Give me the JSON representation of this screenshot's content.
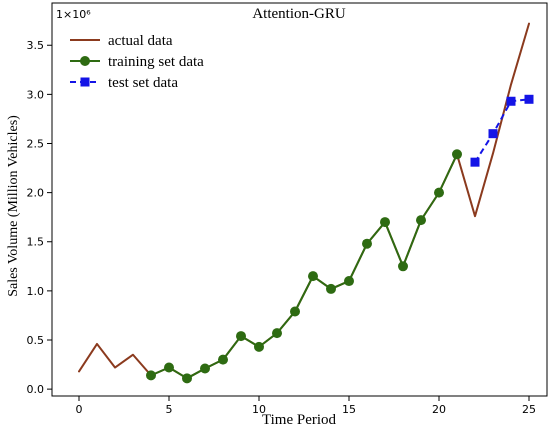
{
  "chart_data": {
    "type": "line",
    "title": "Attention-GRU",
    "xlabel": "Time Period",
    "ylabel": "Sales Volume (Million Vehicles)",
    "y_multiplier_label": "1×10⁶",
    "xlim": [
      -1.5,
      26.0
    ],
    "ylim": [
      -0.07,
      3.93
    ],
    "x_ticks": [
      0,
      5,
      10,
      15,
      20,
      25
    ],
    "y_ticks": [
      0.0,
      0.5,
      1.0,
      1.5,
      2.0,
      2.5,
      3.0,
      3.5
    ],
    "x_tick_labels": [
      "0",
      "5",
      "10",
      "15",
      "20",
      "25"
    ],
    "y_tick_labels": [
      "0.0",
      "0.5",
      "1.0",
      "1.5",
      "2.0",
      "2.5",
      "3.0",
      "3.5"
    ],
    "grid": false,
    "legend_position": "top-left",
    "series": [
      {
        "name": "actual data",
        "color": "#8B3A1E",
        "marker": "none",
        "line_style": "solid",
        "x": [
          0,
          1,
          2,
          3,
          4,
          5,
          6,
          7,
          8,
          9,
          10,
          11,
          12,
          13,
          14,
          15,
          16,
          17,
          18,
          19,
          20,
          21,
          22,
          23,
          24,
          25
        ],
        "y": [
          0.18,
          0.46,
          0.22,
          0.35,
          0.14,
          0.22,
          0.11,
          0.21,
          0.3,
          0.54,
          0.43,
          0.57,
          0.79,
          1.15,
          1.02,
          1.1,
          1.48,
          1.7,
          1.25,
          1.72,
          2.0,
          2.39,
          1.76,
          2.4,
          3.1,
          3.72
        ]
      },
      {
        "name": "training set data",
        "color": "#2E6B12",
        "marker": "circle",
        "line_style": "solid",
        "x": [
          4,
          5,
          6,
          7,
          8,
          9,
          10,
          11,
          12,
          13,
          14,
          15,
          16,
          17,
          18,
          19,
          20,
          21
        ],
        "y": [
          0.14,
          0.22,
          0.11,
          0.21,
          0.3,
          0.54,
          0.43,
          0.57,
          0.79,
          1.15,
          1.02,
          1.1,
          1.48,
          1.7,
          1.25,
          1.72,
          2.0,
          2.39
        ]
      },
      {
        "name": "test set data",
        "color": "#1414E6",
        "marker": "square",
        "line_style": "dashed",
        "x": [
          22,
          23,
          24,
          25
        ],
        "y": [
          2.31,
          2.6,
          2.93,
          2.95
        ]
      }
    ]
  }
}
